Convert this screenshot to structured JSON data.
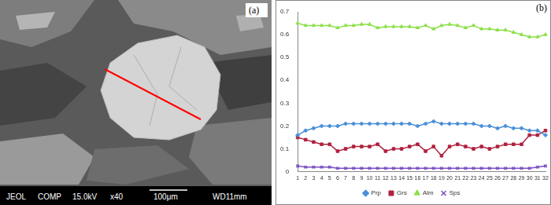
{
  "image_panel": {
    "label": "(a)",
    "footer": [
      "JEOL",
      "COMP",
      "15.0kV",
      "x40",
      "100μm",
      "WD11mm"
    ]
  },
  "chart_data": {
    "type": "line",
    "label": "(b)",
    "categories": [
      "1",
      "2",
      "3",
      "4",
      "5",
      "6",
      "7",
      "8",
      "9",
      "10",
      "11",
      "12",
      "13",
      "14",
      "15",
      "16",
      "17",
      "18",
      "19",
      "20",
      "21",
      "22",
      "23",
      "24",
      "25",
      "26",
      "27",
      "28",
      "29",
      "30",
      "31",
      "32"
    ],
    "series": [
      {
        "name": "Prp",
        "color": "#4a90d9",
        "marker": "diamond",
        "values": [
          0.16,
          0.18,
          0.19,
          0.2,
          0.2,
          0.2,
          0.21,
          0.21,
          0.21,
          0.21,
          0.21,
          0.21,
          0.21,
          0.21,
          0.21,
          0.2,
          0.21,
          0.22,
          0.21,
          0.21,
          0.21,
          0.21,
          0.21,
          0.2,
          0.2,
          0.19,
          0.2,
          0.19,
          0.19,
          0.18,
          0.18,
          0.16
        ]
      },
      {
        "name": "Grs",
        "color": "#b0233f",
        "marker": "square",
        "values": [
          0.15,
          0.14,
          0.13,
          0.12,
          0.12,
          0.09,
          0.1,
          0.11,
          0.11,
          0.11,
          0.12,
          0.09,
          0.1,
          0.1,
          0.11,
          0.12,
          0.09,
          0.11,
          0.07,
          0.11,
          0.12,
          0.11,
          0.1,
          0.11,
          0.1,
          0.11,
          0.12,
          0.12,
          0.12,
          0.16,
          0.16,
          0.18
        ]
      },
      {
        "name": "Alm",
        "color": "#8ee04a",
        "marker": "triangle",
        "values": [
          0.65,
          0.64,
          0.64,
          0.64,
          0.64,
          0.63,
          0.64,
          0.64,
          0.645,
          0.645,
          0.63,
          0.635,
          0.635,
          0.635,
          0.635,
          0.63,
          0.64,
          0.625,
          0.64,
          0.645,
          0.64,
          0.63,
          0.64,
          0.625,
          0.625,
          0.62,
          0.62,
          0.61,
          0.6,
          0.59,
          0.59,
          0.6
        ]
      },
      {
        "name": "Sps",
        "color": "#7b4fc4",
        "marker": "x",
        "values": [
          0.025,
          0.02,
          0.02,
          0.02,
          0.02,
          0.015,
          0.015,
          0.015,
          0.015,
          0.015,
          0.015,
          0.015,
          0.015,
          0.015,
          0.015,
          0.015,
          0.015,
          0.015,
          0.015,
          0.015,
          0.015,
          0.015,
          0.015,
          0.015,
          0.015,
          0.015,
          0.015,
          0.015,
          0.015,
          0.015,
          0.02,
          0.025
        ]
      }
    ],
    "ylim": [
      0,
      0.7
    ],
    "yticks": [
      0,
      0.1,
      0.2,
      0.3,
      0.4,
      0.5,
      0.6,
      0.7
    ],
    "grid": false,
    "legend": "bottom"
  }
}
